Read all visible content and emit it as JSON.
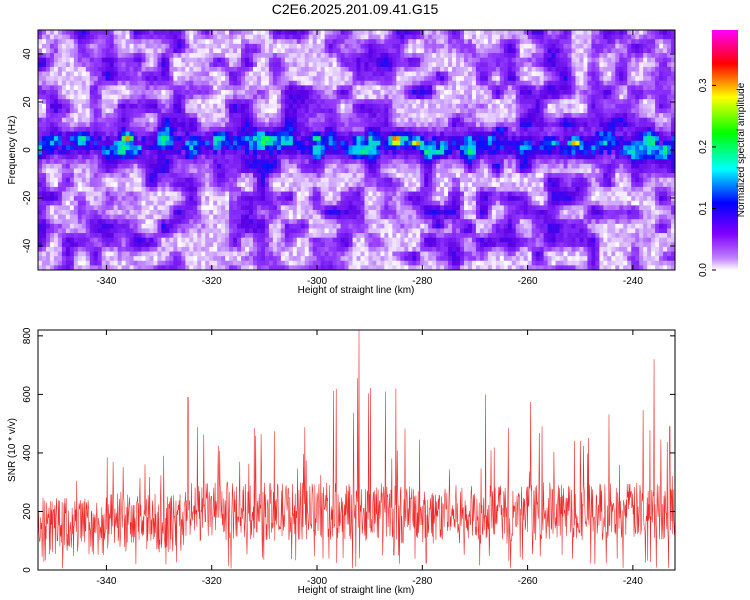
{
  "title": "C2E6.2025.201.09.41.G15",
  "chart_data": [
    {
      "type": "heatmap",
      "xlabel": "Height of straight line (km)",
      "ylabel": "Frequency (Hz)",
      "xlim": [
        -353,
        -232
      ],
      "ylim": [
        -50,
        50
      ],
      "x_ticks": [
        -340,
        -320,
        -300,
        -280,
        -260,
        -240
      ],
      "x_tick_labels": [
        "-340",
        "-320",
        "-300",
        "-280",
        "-260",
        "-240"
      ],
      "y_ticks": [
        -40,
        -20,
        0,
        20,
        40
      ],
      "y_tick_labels": [
        "-40",
        "-20",
        "0",
        "20",
        "40"
      ],
      "colorbar": {
        "label": "Normalized spectral amplitude",
        "range": [
          0,
          0.39
        ],
        "ticks": [
          0,
          0.1,
          0.2,
          0.3
        ],
        "tick_labels": [
          "0.0",
          "0.1",
          "0.2",
          "0.3"
        ],
        "colormap": [
          "#ffffff",
          "#a000ff",
          "#0000ff",
          "#00ffff",
          "#00ff00",
          "#ffff00",
          "#ff0000",
          "#ff00ff"
        ]
      },
      "band_center_hz": 2,
      "band_halfwidth_hz": 6,
      "hotspots": [
        {
          "x": -336,
          "y": 5,
          "value": 0.33
        },
        {
          "x": -324,
          "y": 3,
          "value": 0.18
        },
        {
          "x": -318,
          "y": 5,
          "value": 0.2
        },
        {
          "x": -300,
          "y": 5,
          "value": 0.25
        },
        {
          "x": -292,
          "y": 4,
          "value": 0.24
        },
        {
          "x": -285,
          "y": 4,
          "value": 0.38
        },
        {
          "x": -281,
          "y": 3,
          "value": 0.33
        },
        {
          "x": -276,
          "y": 3,
          "value": 0.2
        },
        {
          "x": -265,
          "y": 8,
          "value": 0.18
        },
        {
          "x": -255,
          "y": 3,
          "value": 0.22
        },
        {
          "x": -251,
          "y": 3,
          "value": 0.33
        },
        {
          "x": -246,
          "y": 6,
          "value": 0.2
        },
        {
          "x": -236,
          "y": 5,
          "value": 0.22
        },
        {
          "x": -334,
          "y": 38,
          "value": 0.12
        },
        {
          "x": -312,
          "y": 42,
          "value": 0.1
        },
        {
          "x": -277,
          "y": -31,
          "value": 0.15
        },
        {
          "x": -263,
          "y": -40,
          "value": 0.13
        }
      ]
    },
    {
      "type": "line",
      "xlabel": "Height of straight line (km)",
      "ylabel": "SNR (10 * v/v)",
      "xlim": [
        -353,
        -232
      ],
      "ylim": [
        0,
        820
      ],
      "x_ticks": [
        -340,
        -320,
        -300,
        -280,
        -260,
        -240
      ],
      "x_tick_labels": [
        "-340",
        "-320",
        "-300",
        "-280",
        "-260",
        "-240"
      ],
      "y_ticks": [
        0,
        200,
        400,
        600,
        800
      ],
      "y_tick_labels": [
        "0",
        "200",
        "400",
        "600",
        "800"
      ],
      "color": "#ee2c2c",
      "segments": [
        {
          "x_start": -353,
          "x_end": -340,
          "mean": 150,
          "max": 400
        },
        {
          "x_start": -340,
          "x_end": -325,
          "mean": 160,
          "max": 470
        },
        {
          "x_start": -325,
          "x_end": -300,
          "mean": 200,
          "max": 590
        },
        {
          "x_start": -300,
          "x_end": -285,
          "mean": 200,
          "max": 820
        },
        {
          "x_start": -285,
          "x_end": -260,
          "mean": 190,
          "max": 620
        },
        {
          "x_start": -260,
          "x_end": -232,
          "mean": 200,
          "max": 720
        }
      ],
      "peaks": [
        {
          "x": -324.5,
          "y": 590
        },
        {
          "x": -292,
          "y": 820
        },
        {
          "x": -292.3,
          "y": 655
        },
        {
          "x": -287,
          "y": 610
        },
        {
          "x": -285,
          "y": 620
        },
        {
          "x": -268,
          "y": 600
        },
        {
          "x": -236,
          "y": 720
        },
        {
          "x": -233,
          "y": 490
        }
      ]
    }
  ]
}
